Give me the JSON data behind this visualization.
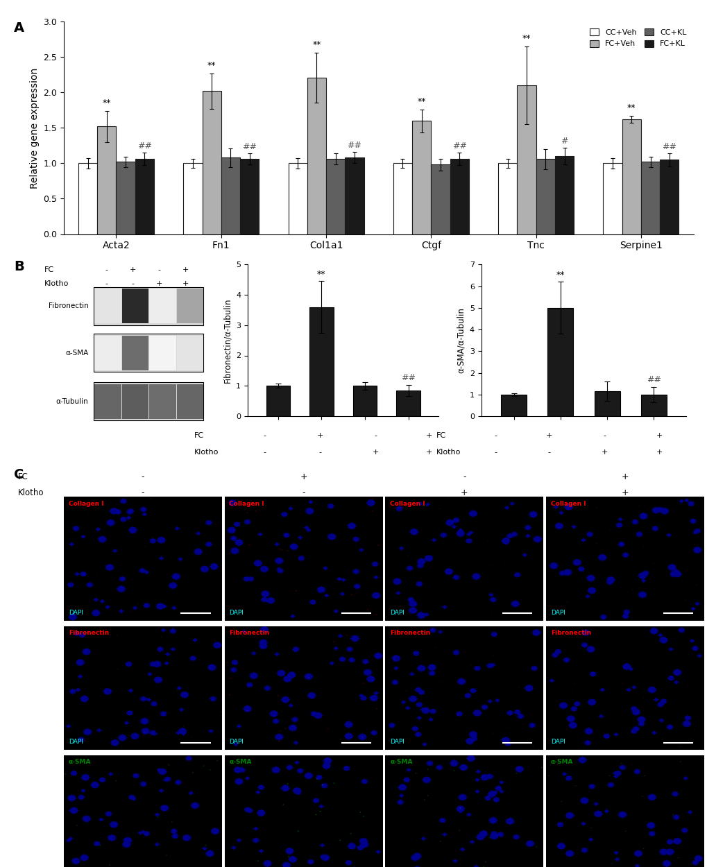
{
  "panel_A": {
    "genes": [
      "Acta2",
      "Fn1",
      "Col1a1",
      "Ctgf",
      "Tnc",
      "Serpine1"
    ],
    "cc_veh": [
      1.0,
      1.0,
      1.0,
      1.0,
      1.0,
      1.0
    ],
    "fc_veh": [
      1.52,
      2.02,
      2.21,
      1.6,
      2.1,
      1.62
    ],
    "cc_kl": [
      1.02,
      1.08,
      1.06,
      0.98,
      1.06,
      1.02
    ],
    "fc_kl": [
      1.06,
      1.06,
      1.08,
      1.06,
      1.1,
      1.05
    ],
    "cc_veh_err": [
      0.07,
      0.06,
      0.07,
      0.06,
      0.06,
      0.07
    ],
    "fc_veh_err": [
      0.22,
      0.25,
      0.35,
      0.16,
      0.55,
      0.05
    ],
    "cc_kl_err": [
      0.07,
      0.13,
      0.08,
      0.08,
      0.14,
      0.07
    ],
    "fc_kl_err": [
      0.09,
      0.08,
      0.08,
      0.09,
      0.12,
      0.09
    ],
    "cc_veh_color": "#ffffff",
    "fc_veh_color": "#b0b0b0",
    "cc_kl_color": "#606060",
    "fc_kl_color": "#1a1a1a",
    "ylabel": "Relative gene expression",
    "ylim": [
      0.0,
      3.0
    ],
    "yticks": [
      0.0,
      0.5,
      1.0,
      1.5,
      2.0,
      2.5,
      3.0
    ],
    "legend_labels": [
      "CC+Veh",
      "FC+Veh",
      "CC+KL",
      "FC+KL"
    ],
    "fc_veh_stars": [
      "**",
      "**",
      "**",
      "**",
      "**",
      "**"
    ],
    "fc_kl_hash": [
      "##",
      "##",
      "##",
      "##",
      "#",
      "##"
    ]
  },
  "panel_B_fibronectin": {
    "values": [
      1.0,
      3.6,
      1.0,
      0.85
    ],
    "errors": [
      0.07,
      0.85,
      0.12,
      0.18
    ],
    "ylabel": "Fibronectin/α-Tubulin",
    "ylim": [
      0,
      5
    ],
    "yticks": [
      0,
      1,
      2,
      3,
      4,
      5
    ],
    "fc_labels": [
      "-",
      "+",
      "-",
      "+"
    ],
    "klotho_labels": [
      "-",
      "-",
      "+",
      "+"
    ],
    "stars": [
      "",
      "**",
      "",
      ""
    ],
    "hash": [
      "",
      "",
      "",
      "##"
    ],
    "bar_color": "#1a1a1a"
  },
  "panel_B_sma": {
    "values": [
      1.0,
      5.0,
      1.15,
      1.0
    ],
    "errors": [
      0.07,
      1.2,
      0.45,
      0.35
    ],
    "ylabel": "α-SMA/α-Tubulin",
    "ylim": [
      0,
      7
    ],
    "yticks": [
      0,
      1,
      2,
      3,
      4,
      5,
      6,
      7
    ],
    "fc_labels": [
      "-",
      "+",
      "-",
      "+"
    ],
    "klotho_labels": [
      "-",
      "-",
      "+",
      "+"
    ],
    "stars": [
      "",
      "**",
      "",
      ""
    ],
    "hash": [
      "",
      "",
      "",
      "##"
    ],
    "bar_color": "#1a1a1a"
  },
  "western_blot": {
    "labels": [
      "Fibronectin",
      "α-SMA",
      "α-Tubulin"
    ],
    "fc_row_vals": [
      "-",
      "+",
      "-",
      "+"
    ],
    "klotho_row_vals": [
      "-",
      "-",
      "+",
      "+"
    ],
    "intensities_fibronectin": [
      0.12,
      0.95,
      0.08,
      0.4
    ],
    "intensities_sma": [
      0.08,
      0.65,
      0.05,
      0.12
    ],
    "intensities_tubulin": [
      0.68,
      0.72,
      0.65,
      0.68
    ]
  },
  "panel_C": {
    "rows": [
      "Collagen I",
      "Fibronectin",
      "α-SMA"
    ],
    "fc_labels": [
      "-",
      "+",
      "-",
      "+"
    ],
    "klotho_labels": [
      "-",
      "-",
      "+",
      "+"
    ],
    "row_colors": [
      "red",
      "red",
      "green"
    ]
  },
  "background_color": "#ffffff",
  "bar_edgecolor": "#1a1a1a",
  "bar_width": 0.18
}
